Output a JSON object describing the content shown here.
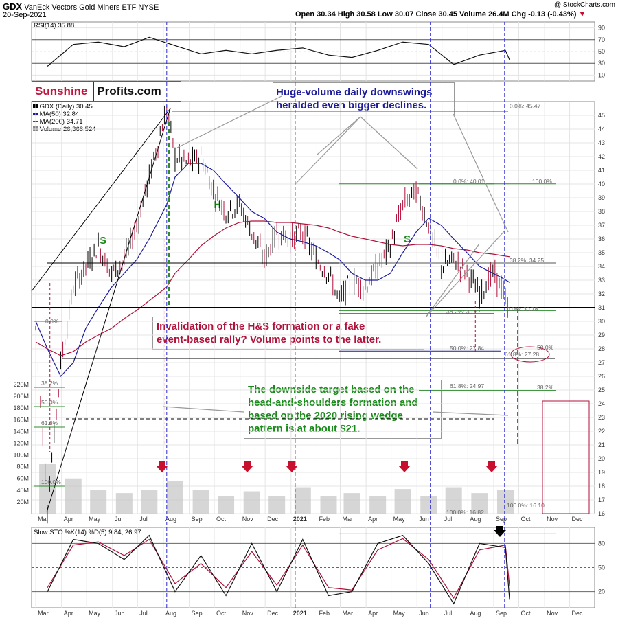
{
  "header": {
    "ticker": "GDX",
    "name": "VanEck Vectors Gold Miners ETF",
    "exchange": "NYSE",
    "date": "20-Sep-2021",
    "ohlc": "Open 30.34  High 30.58  Low 30.07  Close 30.45  Volume 26.4M  Chg -0.13 (-0.43%)",
    "chg_arrow": "▼",
    "credit": "@ StockCharts.com"
  },
  "brand": {
    "part1": "Sunshine",
    "part2": "Profits.com"
  },
  "legend": {
    "price": "GDX (Daily) 30.45",
    "ma50": "MA(50) 32.84",
    "ma200": "MA(200) 34.71",
    "volume": "Volume 26,368,524"
  },
  "annotations": {
    "huge_volume": [
      "Huge-volume daily downswings",
      "heralded even bigger declines."
    ],
    "invalidation": [
      "Invalidation of the H&S formation or a fake",
      "event-based rally? Volume points to the latter."
    ],
    "target": [
      "The downside target based on the",
      "head-and-shoulders formation and",
      "based on the 2020 rising wedge",
      "pattern is at about $21."
    ],
    "shoulder_left": "S",
    "head": "H",
    "shoulder_right": "S"
  },
  "colors": {
    "price_up": "#000000",
    "price_down": "#b0123a",
    "ma50": "#1b1b9c",
    "ma200": "#b0123a",
    "fib_green": "#2e8b2e",
    "fib_navy": "#1b1b8c",
    "vline": "#2a2ad0",
    "arrow_red": "#c8102e",
    "green_text": "#1a8a1a",
    "grid": "#e4e4e4",
    "vol_bar": "#c8c8c8"
  },
  "chart_data": [
    {
      "type": "line",
      "panel": "rsi",
      "title": "RSI(14) 35.88",
      "ylim": [
        0,
        100
      ],
      "ticks": [
        10,
        30,
        50,
        70,
        90
      ],
      "grid": true,
      "x": [
        "2020-03",
        "2020-04",
        "2020-05",
        "2020-06",
        "2020-07",
        "2020-08",
        "2020-09",
        "2020-10",
        "2020-11",
        "2020-12",
        "2021-01",
        "2021-02",
        "2021-03",
        "2021-04",
        "2021-05",
        "2021-06",
        "2021-07",
        "2021-08",
        "2021-09",
        "2021-09-20"
      ],
      "series": [
        {
          "values": [
            25,
            62,
            66,
            58,
            74,
            60,
            46,
            52,
            46,
            52,
            56,
            44,
            40,
            52,
            66,
            62,
            28,
            44,
            52,
            35.88
          ]
        }
      ]
    },
    {
      "type": "line",
      "panel": "price",
      "ylabel": "",
      "ylim": [
        16,
        46
      ],
      "ticks": [
        16,
        17,
        18,
        19,
        20,
        21,
        22,
        23,
        24,
        25,
        26,
        27,
        28,
        29,
        30,
        31,
        32,
        33,
        34,
        35,
        36,
        37,
        38,
        39,
        40,
        41,
        42,
        43,
        44,
        45
      ],
      "grid": true,
      "x": [
        "2020-03-01",
        "2020-03-15",
        "2020-03-31",
        "2020-04-15",
        "2020-04-30",
        "2020-05-15",
        "2020-05-31",
        "2020-06-15",
        "2020-06-30",
        "2020-07-15",
        "2020-08-05",
        "2020-08-15",
        "2020-08-31",
        "2020-09-15",
        "2020-09-30",
        "2020-10-15",
        "2020-10-31",
        "2020-11-15",
        "2020-11-30",
        "2020-12-15",
        "2020-12-31",
        "2021-01-15",
        "2021-01-31",
        "2021-02-15",
        "2021-02-28",
        "2021-03-15",
        "2021-03-31",
        "2021-04-15",
        "2021-04-30",
        "2021-05-15",
        "2021-05-31",
        "2021-06-15",
        "2021-06-30",
        "2021-07-15",
        "2021-07-31",
        "2021-08-15",
        "2021-08-31",
        "2021-09-10",
        "2021-09-20"
      ],
      "series": [
        {
          "name": "GDX (Daily)",
          "values": [
            29.5,
            16.5,
            27.0,
            32.5,
            34.0,
            35.5,
            33.5,
            34.5,
            37.0,
            40.5,
            45.5,
            42.0,
            41.5,
            42.0,
            39.5,
            38.0,
            38.5,
            36.5,
            34.5,
            36.5,
            36.0,
            36.5,
            34.5,
            33.5,
            31.5,
            33.0,
            32.5,
            34.0,
            35.5,
            38.5,
            39.5,
            37.0,
            34.0,
            34.5,
            33.5,
            32.0,
            33.5,
            32.5,
            30.45
          ]
        },
        {
          "name": "MA(50)",
          "values": [
            30.0,
            28.0,
            26.0,
            27.0,
            29.5,
            31.0,
            32.5,
            33.5,
            34.5,
            36.0,
            38.5,
            40.5,
            41.5,
            41.5,
            41.0,
            40.0,
            39.0,
            38.0,
            37.5,
            36.5,
            36.0,
            35.8,
            35.5,
            35.0,
            34.5,
            33.5,
            33.0,
            33.0,
            33.5,
            35.0,
            36.5,
            37.5,
            37.0,
            36.0,
            35.0,
            34.0,
            33.5,
            33.2,
            32.84
          ]
        },
        {
          "name": "MA(200)",
          "values": [
            28.5,
            28.0,
            27.5,
            27.8,
            28.5,
            29.0,
            29.5,
            30.2,
            30.8,
            31.5,
            32.5,
            33.5,
            34.5,
            35.5,
            36.2,
            36.8,
            37.2,
            37.3,
            37.3,
            37.2,
            37.2,
            37.1,
            37.0,
            36.8,
            36.5,
            36.2,
            36.0,
            35.8,
            35.6,
            35.5,
            35.6,
            35.6,
            35.5,
            35.3,
            35.2,
            35.0,
            34.9,
            34.8,
            34.71
          ]
        }
      ],
      "fib_labels": [
        "0.0%: 45.47",
        "0.0%: 40.01",
        "100.0%",
        "38.2%: 34.25",
        "0.0%: 30.78",
        "38.2%: 30.57",
        "50.0%: 27.84",
        "61.8%: 27.28",
        "50.0%",
        "61.8%: 24.97",
        "38.2%",
        "100.0%: 16.10",
        "100.0%: 16.82",
        "0.0%",
        "38.2%",
        "50.0%",
        "61.8%",
        "100.0%"
      ],
      "x_ticks": [
        "Mar",
        "Apr",
        "May",
        "Jun",
        "Jul",
        "Aug",
        "Sep",
        "Oct",
        "Nov",
        "Dec",
        "2021",
        "Feb",
        "Mar",
        "Apr",
        "May",
        "Jun",
        "Jul",
        "Aug",
        "Sep",
        "Oct",
        "Nov",
        "Dec"
      ]
    },
    {
      "type": "bar",
      "panel": "volume",
      "ylim": [
        0,
        220
      ],
      "ticks": [
        "20M",
        "40M",
        "60M",
        "80M",
        "100M",
        "120M",
        "140M",
        "160M",
        "180M",
        "200M",
        "220M"
      ],
      "x": [
        "2020-03",
        "2020-04",
        "2020-05",
        "2020-06",
        "2020-07",
        "2020-08",
        "2020-09",
        "2020-10",
        "2020-11",
        "2020-12",
        "2021-01",
        "2021-02",
        "2021-03",
        "2021-04",
        "2021-05",
        "2021-06",
        "2021-07",
        "2021-08",
        "2021-09"
      ],
      "values": [
        85,
        60,
        40,
        35,
        40,
        55,
        40,
        30,
        38,
        30,
        45,
        30,
        35,
        30,
        42,
        30,
        45,
        35,
        40
      ]
    },
    {
      "type": "line",
      "panel": "stochastic",
      "title": "Slow STO %K(14) %D(5) 9.84, 26.97",
      "ylim": [
        0,
        100
      ],
      "ticks": [
        20,
        50,
        80
      ],
      "grid": true,
      "x": [
        "2020-03",
        "2020-04",
        "2020-05",
        "2020-06",
        "2020-07",
        "2020-08",
        "2020-09",
        "2020-10",
        "2020-11",
        "2020-12",
        "2021-01",
        "2021-02",
        "2021-03",
        "2021-04",
        "2021-05",
        "2021-06",
        "2021-07",
        "2021-08",
        "2021-09",
        "2021-09-20"
      ],
      "series": [
        {
          "name": "%K",
          "values": [
            20,
            85,
            80,
            60,
            90,
            20,
            65,
            15,
            80,
            20,
            85,
            15,
            20,
            80,
            90,
            55,
            5,
            80,
            75,
            9.84
          ]
        },
        {
          "name": "%D",
          "values": [
            25,
            78,
            82,
            65,
            85,
            30,
            55,
            25,
            70,
            28,
            78,
            25,
            22,
            72,
            86,
            60,
            12,
            72,
            78,
            26.97
          ]
        }
      ],
      "x_ticks": [
        "Mar",
        "Apr",
        "May",
        "Jun",
        "Jul",
        "Aug",
        "Sep",
        "Oct",
        "Nov",
        "Dec",
        "2021",
        "Feb",
        "Mar",
        "Apr",
        "May",
        "Jun",
        "Jul",
        "Aug",
        "Sep",
        "Oct",
        "Nov",
        "Dec"
      ]
    }
  ]
}
